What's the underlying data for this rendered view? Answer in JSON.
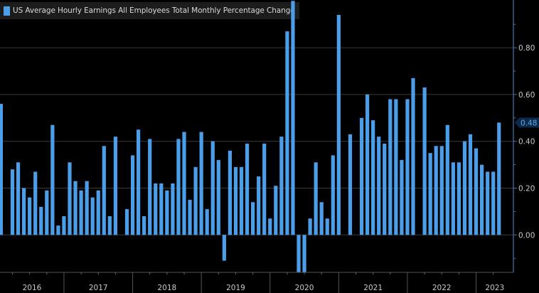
{
  "chart_data": {
    "type": "bar",
    "title": "",
    "legend": {
      "entries": [
        "US Average Hourly Earnings All Employees Total Monthly Percentage Change"
      ],
      "placement": "top-left"
    },
    "xlabel": "",
    "ylabel": "",
    "ylim": [
      -0.16,
      1.0
    ],
    "y_axis_side": "right",
    "yticks": [
      "0.00",
      "0.20",
      "0.40",
      "0.60",
      "0.80"
    ],
    "ytick_values": [
      0,
      0.2,
      0.4,
      0.6,
      0.8
    ],
    "grid": true,
    "year_labels": [
      "2016",
      "2017",
      "2018",
      "2019",
      "2020",
      "2021",
      "2022",
      "2023"
    ],
    "x_start": "2016-01",
    "frequency": "monthly",
    "last_value_label": "0.48",
    "colors": {
      "bar": "#4a9eea",
      "background": "#000000",
      "grid": "#3a3a3a",
      "axis": "#3f74b0",
      "text": "#c8c8c8"
    },
    "series": [
      {
        "name": "US Average Hourly Earnings All Employees Total Monthly Percentage Change",
        "values": [
          0.56,
          0.0,
          0.28,
          0.31,
          0.2,
          0.16,
          0.27,
          0.12,
          0.19,
          0.47,
          0.04,
          0.08,
          0.31,
          0.23,
          0.19,
          0.23,
          0.16,
          0.19,
          0.38,
          0.08,
          0.42,
          0.0,
          0.11,
          0.34,
          0.45,
          0.08,
          0.41,
          0.22,
          0.22,
          0.19,
          0.22,
          0.41,
          0.44,
          0.15,
          0.29,
          0.44,
          0.11,
          0.4,
          0.32,
          -0.11,
          0.36,
          0.29,
          0.29,
          0.39,
          0.14,
          0.25,
          0.39,
          0.07,
          0.21,
          0.42,
          0.87,
          1.0,
          -0.16,
          -0.16,
          0.07,
          0.31,
          0.14,
          0.07,
          0.34,
          0.94,
          0.0,
          0.43,
          0.0,
          0.5,
          0.6,
          0.49,
          0.42,
          0.39,
          0.58,
          0.58,
          0.32,
          0.58,
          0.67,
          0.0,
          0.63,
          0.35,
          0.38,
          0.38,
          0.47,
          0.31,
          0.31,
          0.4,
          0.43,
          0.37,
          0.3,
          0.27,
          0.27,
          0.48
        ]
      }
    ]
  }
}
